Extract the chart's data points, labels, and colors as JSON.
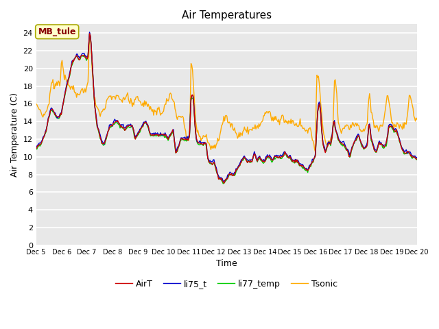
{
  "title": "Air Temperatures",
  "xlabel": "Time",
  "ylabel": "Air Temperature (C)",
  "ylim": [
    0,
    25
  ],
  "yticks": [
    0,
    2,
    4,
    6,
    8,
    10,
    12,
    14,
    16,
    18,
    20,
    22,
    24
  ],
  "xtick_labels": [
    "Dec 5",
    "Dec 6",
    "Dec 7",
    "Dec 8",
    "Dec 9",
    "Dec 10",
    "Dec 11",
    "Dec 12",
    "Dec 13",
    "Dec 14",
    "Dec 15",
    "Dec 16",
    "Dec 17",
    "Dec 18",
    "Dec 19",
    "Dec 20"
  ],
  "series_colors": {
    "AirT": "#cc0000",
    "li75_t": "#0000cc",
    "li77_temp": "#00cc00",
    "Tsonic": "#ffaa00"
  },
  "annotation_text": "MB_tule",
  "annotation_color": "#880000",
  "annotation_bg": "#ffffcc",
  "annotation_edge": "#aaaa00",
  "fig_bg": "#ffffff",
  "plot_bg": "#e8e8e8",
  "grid_color": "#ffffff",
  "title_fontsize": 11,
  "axis_label_fontsize": 9,
  "tick_fontsize": 8,
  "legend_fontsize": 9,
  "line_width": 1.0
}
